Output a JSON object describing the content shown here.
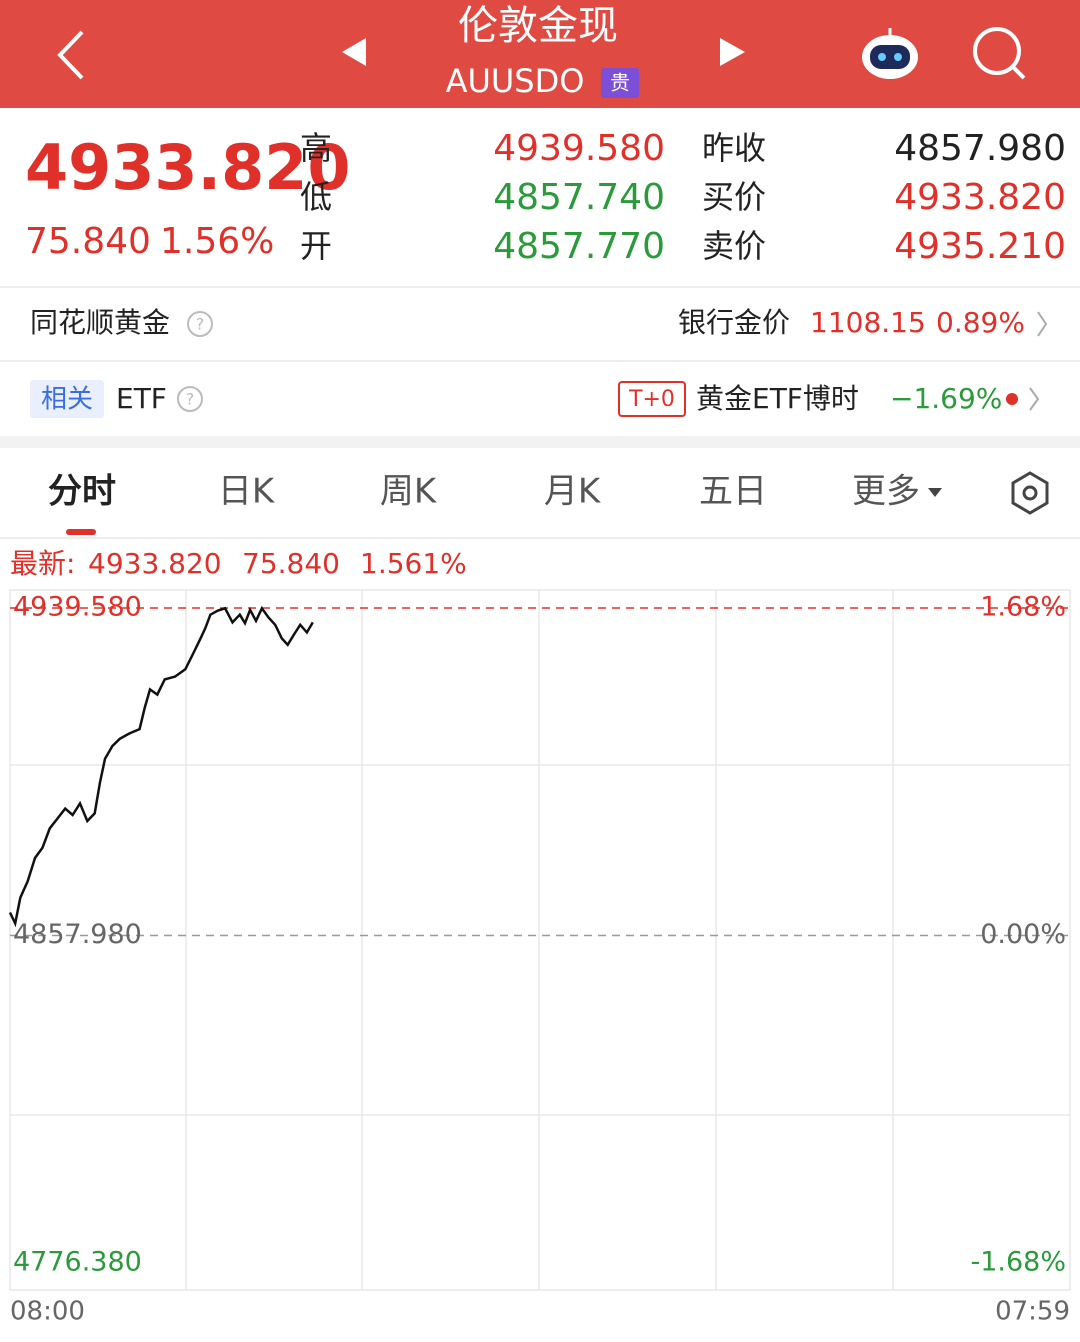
{
  "header": {
    "title": "伦敦金现",
    "code": "AUUSDO",
    "badge": "贵"
  },
  "quote": {
    "price": "4933.820",
    "change": "75.840",
    "change_pct": "1.56%",
    "stats": [
      {
        "label": "高",
        "value": "4939.580"
      },
      {
        "label": "低",
        "value": "4857.740"
      },
      {
        "label": "开",
        "value": "4857.770"
      },
      {
        "label": "昨收",
        "value": "4857.980"
      },
      {
        "label": "买价",
        "value": "4933.820"
      },
      {
        "label": "卖价",
        "value": "4935.210"
      }
    ]
  },
  "rows": {
    "gold_name": "同花顺黄金",
    "bank_label": "银行金价",
    "bank_price": "1108.15",
    "bank_pct": "0.89%",
    "related": "相关",
    "etf": "ETF",
    "t0": "T+0",
    "etf_name": "黄金ETF博时",
    "etf_pct": "−1.69%"
  },
  "tabs": [
    "分时",
    "日K",
    "周K",
    "月K",
    "五日",
    "更多"
  ],
  "chart": {
    "type": "line",
    "latest_label": "最新:",
    "latest": "4933.820",
    "latest_change": "75.840",
    "latest_pct": "1.561%",
    "x": [
      0,
      7,
      14,
      24,
      34,
      44,
      54,
      64,
      75,
      85,
      95,
      105,
      115,
      122,
      129,
      139,
      149,
      162,
      176,
      183,
      190,
      200,
      210,
      224,
      238,
      248,
      258,
      265,
      272,
      282,
      292,
      302,
      312,
      319,
      326,
      334,
      342,
      351,
      360,
      369,
      377,
      386,
      394,
      403,
      411
    ],
    "values": [
      4863.7,
      4861.0,
      4867.4,
      4871.5,
      4877.3,
      4879.8,
      4884.7,
      4887.0,
      4889.6,
      4888.0,
      4890.9,
      4886.5,
      4888.4,
      4896.0,
      4902.0,
      4905.2,
      4907.0,
      4908.3,
      4909.4,
      4914.8,
      4919.3,
      4918.0,
      4921.8,
      4922.5,
      4924.3,
      4928.0,
      4931.7,
      4934.5,
      4937.9,
      4938.9,
      4939.5,
      4936.0,
      4937.9,
      4935.8,
      4939.1,
      4936.4,
      4939.5,
      4937.2,
      4935.4,
      4932.0,
      4930.4,
      4933.1,
      4935.4,
      4933.5,
      4936.0
    ],
    "xlim": [
      0,
      1439
    ],
    "xticks": [
      {
        "value": 0,
        "label": "08:00"
      },
      {
        "value": 1439,
        "label": "07:59"
      }
    ],
    "ylim": [
      4776.38,
      4939.58
    ],
    "yticks": [
      {
        "value": 4939.58,
        "label": "4939.580"
      },
      {
        "value": 4857.98,
        "label": "4857.980"
      },
      {
        "value": 4776.38,
        "label": "4776.380"
      }
    ],
    "pct_labels": [
      "1.68%",
      "0.00%",
      "-1.68%"
    ],
    "color": "#111111"
  }
}
